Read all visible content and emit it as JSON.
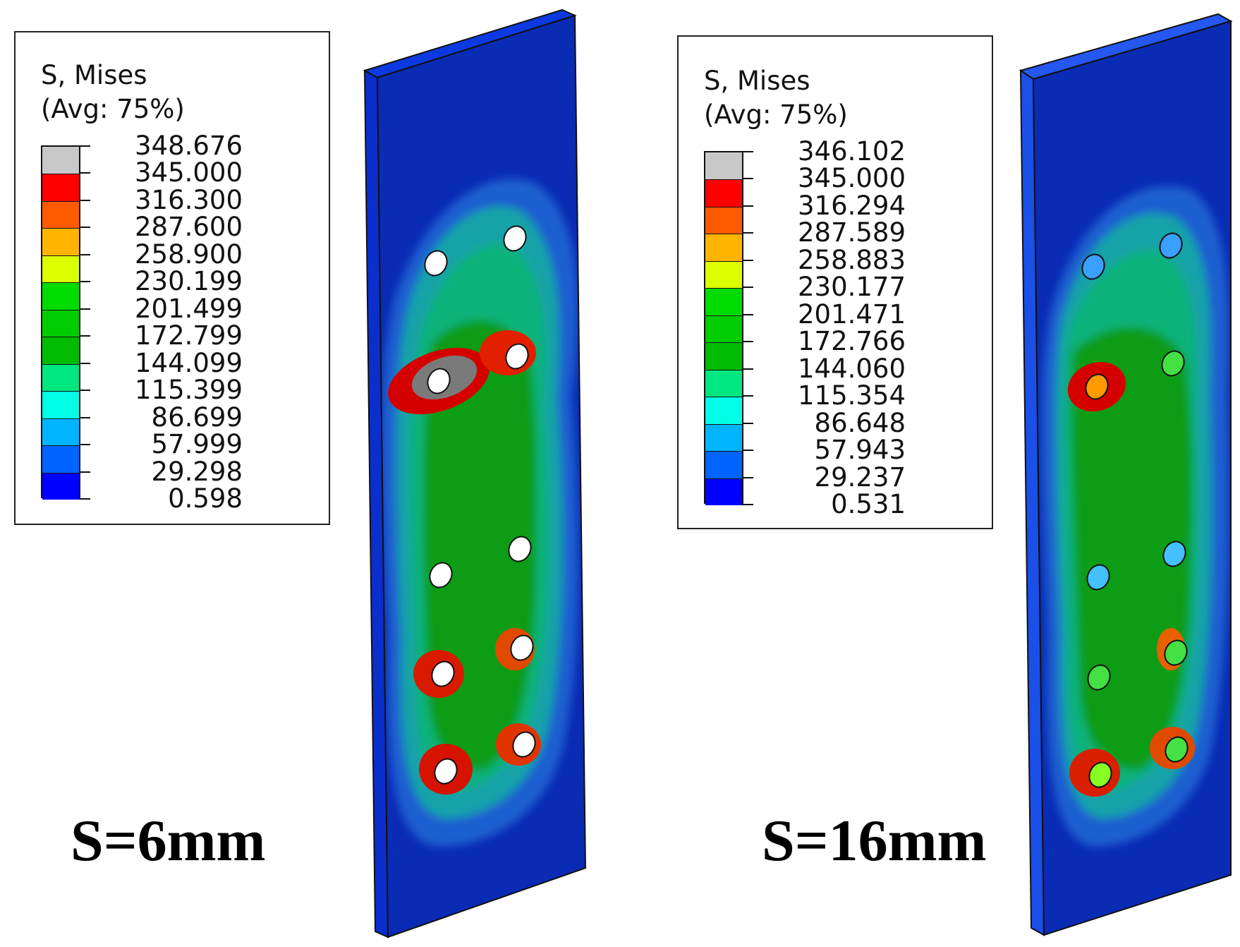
{
  "panels": [
    {
      "id": "s6",
      "legend_title_line1": "S, Mises",
      "legend_title_line2": "(Avg: 75%)",
      "legend_values": [
        "348.676",
        "345.000",
        "316.300",
        "287.600",
        "258.900",
        "230.199",
        "201.499",
        "172.799",
        "144.099",
        "115.399",
        "86.699",
        "57.999",
        "29.298",
        "0.598"
      ],
      "caption": "S=6mm"
    },
    {
      "id": "s16",
      "legend_title_line1": "S, Mises",
      "legend_title_line2": "(Avg: 75%)",
      "legend_values": [
        "346.102",
        "345.000",
        "316.294",
        "287.589",
        "258.883",
        "230.177",
        "201.471",
        "172.766",
        "144.060",
        "115.354",
        "86.648",
        "57.943",
        "29.237",
        "0.531"
      ],
      "caption": "S=16mm"
    }
  ],
  "legend_colors": [
    "#c8c8c8",
    "#ff0000",
    "#ff5a00",
    "#ffb400",
    "#dcff00",
    "#00dc00",
    "#00cc00",
    "#00bb00",
    "#00e680",
    "#00ffe6",
    "#00b4ff",
    "#0064ff",
    "#0000ff"
  ]
}
